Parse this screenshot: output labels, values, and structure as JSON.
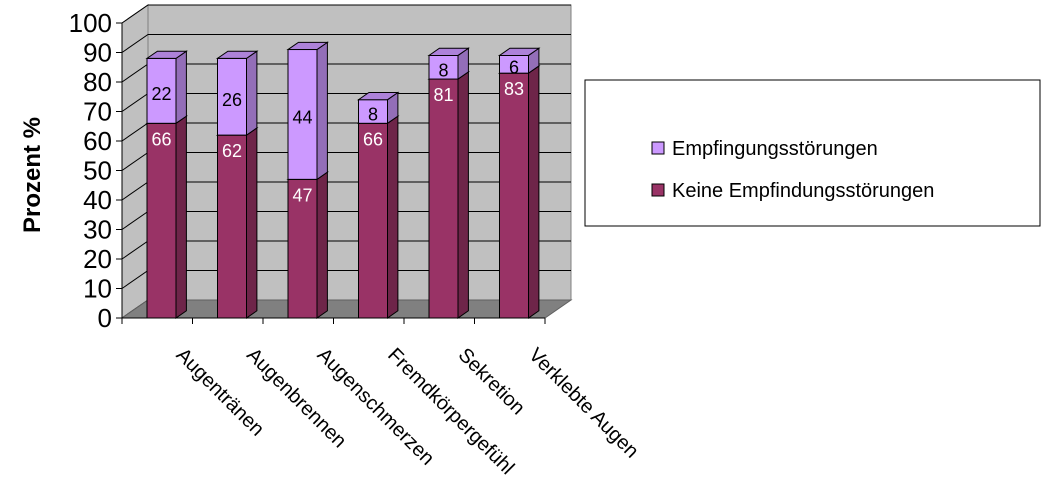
{
  "chart_data": {
    "type": "bar",
    "stacked": true,
    "three_d": true,
    "categories": [
      "Augentränen",
      "Augenbrennen",
      "Augenschmerzen",
      "Fremdkörpergefühl",
      "Sekretion",
      "Verklebte Augen"
    ],
    "series": [
      {
        "name": "Keine Empfindungsstörungen",
        "values": [
          66,
          62,
          47,
          66,
          81,
          83
        ],
        "color": "#993366"
      },
      {
        "name": "Empfingungsstörungen",
        "values": [
          22,
          26,
          44,
          8,
          8,
          6
        ],
        "color": "#CC99FF"
      }
    ],
    "ylabel": "Prozent %",
    "ylim": [
      0,
      100
    ],
    "yticks": [
      0,
      10,
      20,
      30,
      40,
      50,
      60,
      70,
      80,
      90,
      100
    ],
    "grid": true,
    "legend_position": "right",
    "wall_color": "#C0C0C0",
    "floor_color": "#808080"
  }
}
